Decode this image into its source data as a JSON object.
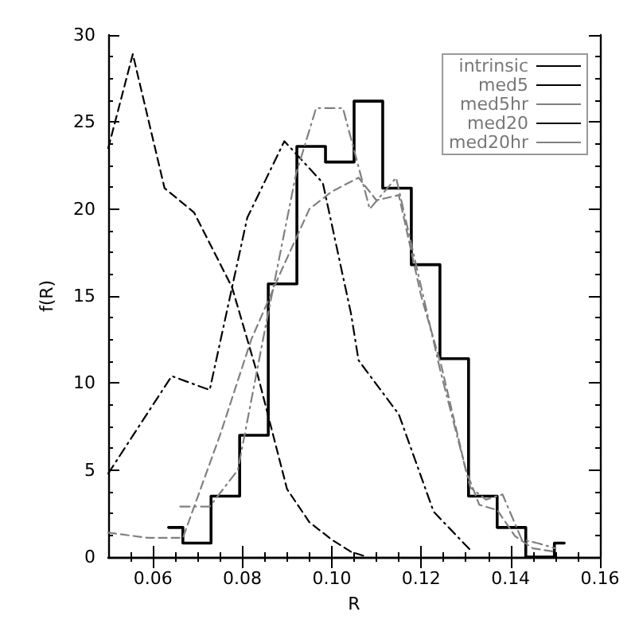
{
  "chart_data": {
    "type": "line",
    "xlabel": "R",
    "ylabel": "f(R)",
    "xlim": [
      0.05,
      0.16
    ],
    "ylim": [
      0,
      30
    ],
    "xticks": [
      0.06,
      0.08,
      {
        "value": 0.1,
        "label": "0.10"
      },
      0.12,
      0.14,
      0.16
    ],
    "yticks": [
      0,
      5,
      10,
      15,
      20,
      25,
      30
    ],
    "grid": false,
    "legend": "top right",
    "series": [
      {
        "name": "intrinsic",
        "type": "step",
        "color": "#000000",
        "line_style": "solid",
        "x": [
          0.0635,
          0.0667,
          0.073,
          0.0794,
          0.0858,
          0.0922,
          0.0986,
          0.105,
          0.1114,
          0.1178,
          0.1242,
          0.1306,
          0.137,
          0.1434,
          0.1498,
          0.152
        ],
        "values": [
          1.7,
          0.8,
          3.5,
          7.0,
          15.7,
          23.6,
          22.7,
          26.2,
          21.2,
          16.8,
          11.4,
          3.5,
          1.7,
          0,
          0.8,
          0.8
        ]
      },
      {
        "name": "med5",
        "color": "#000000",
        "line_style": "dashed",
        "x": [
          0.05,
          0.0555,
          0.0626,
          0.0692,
          0.0777,
          0.0835,
          0.09,
          0.095,
          0.1,
          0.1043,
          0.108
        ],
        "values": [
          23.5,
          28.9,
          21.2,
          19.8,
          15.5,
          10.4,
          3.9,
          2.0,
          1.0,
          0.3,
          0
        ]
      },
      {
        "name": "med5hr",
        "color": "#808080",
        "line_style": "dashed",
        "x": [
          0.05,
          0.059,
          0.0667,
          0.075,
          0.082,
          0.0888,
          0.095,
          0.1,
          0.106,
          0.11,
          0.115,
          0.12,
          0.1245,
          0.13,
          0.133,
          0.137,
          0.141,
          0.145,
          0.15
        ],
        "values": [
          1.4,
          1.1,
          1.1,
          7,
          12.5,
          16.5,
          20,
          21,
          21.8,
          20.5,
          20.8,
          15,
          11,
          5,
          3,
          2.7,
          1.2,
          0.5,
          0.3
        ]
      },
      {
        "name": "med20",
        "color": "#000000",
        "line_style": "dashdot",
        "x": [
          0.05,
          0.0642,
          0.0727,
          0.0811,
          0.0894,
          0.098,
          0.1043,
          0.106,
          0.115,
          0.1228,
          0.131
        ],
        "values": [
          4.8,
          10.4,
          9.6,
          19.5,
          23.9,
          21.5,
          14.0,
          11.3,
          8.2,
          2.6,
          0.4
        ]
      },
      {
        "name": "med20hr",
        "color": "#808080",
        "line_style": "dashdot",
        "x": [
          0.0661,
          0.0727,
          0.079,
          0.085,
          0.092,
          0.0965,
          0.1025,
          0.1085,
          0.1144,
          0.1242,
          0.131,
          0.1345,
          0.1382,
          0.1425,
          0.146,
          0.15
        ],
        "values": [
          2.9,
          2.9,
          5,
          13,
          22,
          25.8,
          25.8,
          20,
          21.8,
          10.8,
          4.0,
          3.3,
          3.6,
          1.0,
          0.8,
          0.5
        ]
      }
    ]
  }
}
